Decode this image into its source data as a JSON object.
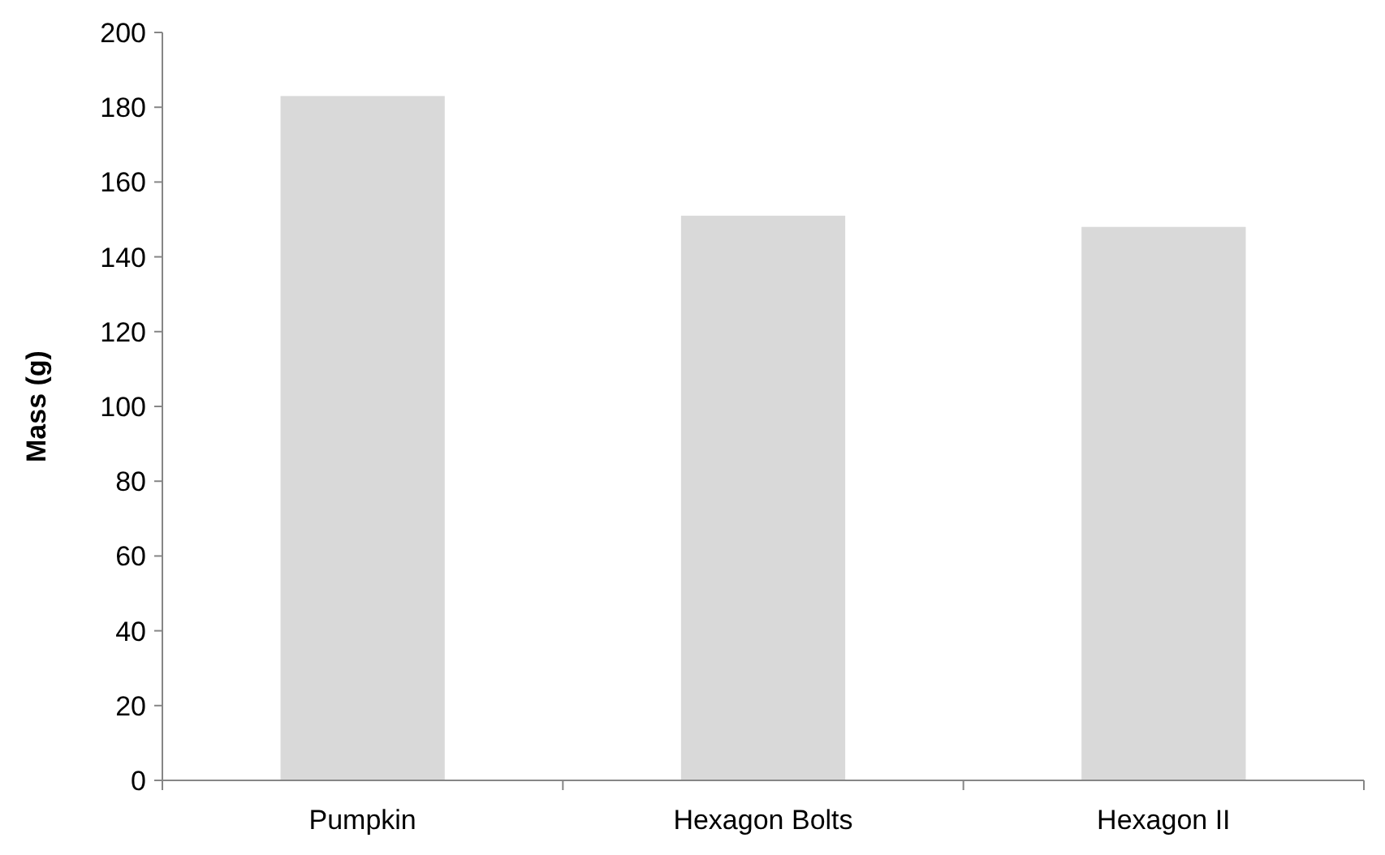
{
  "chart_data": {
    "type": "bar",
    "ylabel": "Mass (g)",
    "categories": [
      "Pumpkin",
      "Hexagon Bolts",
      "Hexagon II"
    ],
    "values": [
      183,
      151,
      148
    ],
    "color": "#d9d9d9",
    "ylim": [
      0,
      200
    ],
    "yticks": [
      0,
      20,
      40,
      60,
      80,
      100,
      120,
      140,
      160,
      180,
      200
    ],
    "grid": false
  }
}
